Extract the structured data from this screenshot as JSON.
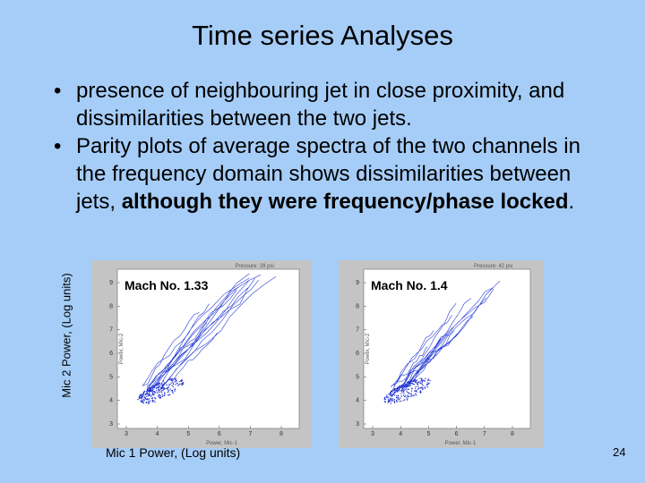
{
  "title": "Time series Analyses",
  "bullets": [
    {
      "text": "presence of neighbouring jet in close proximity, and dissimilarities between the two jets."
    },
    {
      "text": "Parity plots of average spectra of the two channels in the frequency domain shows dissimilarities between jets, ",
      "bold": "although they were frequency/phase locked",
      "end": "."
    }
  ],
  "y_axis_label": "Mic 2 Power, (Log units)",
  "x_axis_label": "Mic 1 Power, (Log units)",
  "figures": [
    {
      "label": "Mach No. 1.33",
      "header": "Pressure: 28 psi",
      "xlabel": "Power, Mic-1",
      "ylabel": "Power, Mic-2",
      "xticks": [
        "3",
        "4",
        "5",
        "6",
        "7",
        "8"
      ],
      "yticks": [
        "3",
        "4",
        "5",
        "6",
        "7",
        "8",
        "9"
      ]
    },
    {
      "label": "Mach No. 1.4",
      "header": "Pressure: 42 psi",
      "xlabel": "Power, Mic-1",
      "ylabel": "Power, Mic-2",
      "xticks": [
        "3",
        "4",
        "5",
        "6",
        "7",
        "8"
      ],
      "yticks": [
        "3",
        "4",
        "5",
        "6",
        "7",
        "8",
        "9"
      ]
    }
  ],
  "page_number": "24"
}
